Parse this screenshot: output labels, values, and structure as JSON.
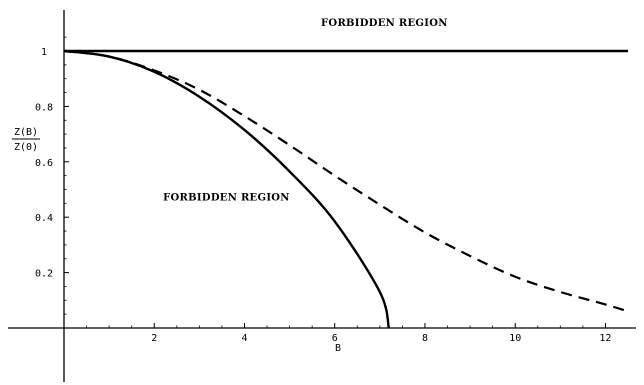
{
  "chart_data": {
    "type": "line",
    "xlabel": "B",
    "ylabel_num": "Z(B)",
    "ylabel_den": "Z(0)",
    "xlim": [
      0,
      12.5
    ],
    "ylim": [
      0,
      1.1
    ],
    "x_ticks": [
      2,
      4,
      6,
      8,
      10,
      12
    ],
    "y_ticks": [
      0.2,
      0.4,
      0.6,
      0.8,
      1
    ],
    "x_tick_labels": [
      "2",
      "4",
      "6",
      "8",
      "10",
      "12"
    ],
    "y_tick_labels": [
      "0.2",
      "0.4",
      "0.6",
      "0.8",
      "1"
    ],
    "grid": false,
    "annotations": [
      {
        "text": "FORBIDDEN REGION",
        "x": 7.1,
        "y": 1.09
      },
      {
        "text": "FORBIDDEN REGION",
        "x": 3.6,
        "y": 0.46
      }
    ],
    "series": [
      {
        "style": "solid",
        "x": [
          0,
          12.5
        ],
        "y": [
          1,
          1
        ]
      },
      {
        "style": "solid",
        "x": [
          0,
          1,
          2,
          3,
          4,
          5,
          6,
          7,
          7.2
        ],
        "y": [
          1,
          0.98,
          0.925,
          0.835,
          0.715,
          0.565,
          0.385,
          0.13,
          0.0
        ]
      },
      {
        "style": "dashed",
        "x": [
          0,
          1,
          2,
          3,
          4,
          5,
          6,
          7,
          8,
          9,
          10,
          11,
          12,
          12.5
        ],
        "y": [
          1,
          0.98,
          0.93,
          0.86,
          0.765,
          0.66,
          0.55,
          0.445,
          0.345,
          0.26,
          0.185,
          0.13,
          0.085,
          0.06
        ]
      }
    ]
  }
}
